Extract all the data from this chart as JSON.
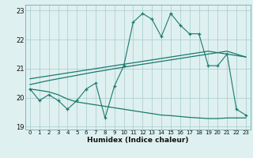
{
  "xlabel": "Humidex (Indice chaleur)",
  "bg_color": "#dff0f0",
  "grid_color": "#b0d0d0",
  "line_color": "#1a7a6e",
  "xlim": [
    -0.5,
    23.5
  ],
  "ylim": [
    18.9,
    23.2
  ],
  "yticks": [
    19,
    20,
    21,
    22,
    23
  ],
  "xticks": [
    0,
    1,
    2,
    3,
    4,
    5,
    6,
    7,
    8,
    9,
    10,
    11,
    12,
    13,
    14,
    15,
    16,
    17,
    18,
    19,
    20,
    21,
    22,
    23
  ],
  "series1_x": [
    0,
    1,
    2,
    3,
    4,
    5,
    6,
    7,
    8,
    9,
    10,
    11,
    12,
    13,
    14,
    15,
    16,
    17,
    18,
    19,
    20,
    21,
    22,
    23
  ],
  "series1_y": [
    20.3,
    19.9,
    20.1,
    19.9,
    19.6,
    19.9,
    20.3,
    20.5,
    19.3,
    20.4,
    21.1,
    22.6,
    22.9,
    22.7,
    22.1,
    22.9,
    22.5,
    22.2,
    22.2,
    21.1,
    21.1,
    21.5,
    19.6,
    19.4
  ],
  "series2_x": [
    0,
    1,
    2,
    3,
    4,
    5,
    6,
    7,
    8,
    9,
    10,
    11,
    12,
    13,
    14,
    15,
    16,
    17,
    18,
    19,
    20,
    21,
    22,
    23
  ],
  "series2_y": [
    20.45,
    20.52,
    20.59,
    20.65,
    20.71,
    20.77,
    20.83,
    20.89,
    20.94,
    21.0,
    21.05,
    21.1,
    21.15,
    21.2,
    21.25,
    21.3,
    21.35,
    21.4,
    21.45,
    21.5,
    21.55,
    21.6,
    21.5,
    21.4
  ],
  "series3_x": [
    0,
    1,
    2,
    3,
    4,
    5,
    6,
    7,
    8,
    9,
    10,
    11,
    12,
    13,
    14,
    15,
    16,
    17,
    18,
    19,
    20,
    21,
    22,
    23
  ],
  "series3_y": [
    20.65,
    20.7,
    20.75,
    20.8,
    20.85,
    20.9,
    20.95,
    21.0,
    21.05,
    21.1,
    21.15,
    21.2,
    21.25,
    21.3,
    21.35,
    21.4,
    21.45,
    21.5,
    21.55,
    21.6,
    21.55,
    21.5,
    21.45,
    21.4
  ],
  "series4_x": [
    0,
    1,
    2,
    3,
    4,
    5,
    6,
    7,
    8,
    9,
    10,
    11,
    12,
    13,
    14,
    15,
    16,
    17,
    18,
    19,
    20,
    21,
    22,
    23
  ],
  "series4_y": [
    20.3,
    20.25,
    20.2,
    20.1,
    19.95,
    19.85,
    19.8,
    19.75,
    19.7,
    19.65,
    19.6,
    19.55,
    19.5,
    19.45,
    19.4,
    19.38,
    19.35,
    19.32,
    19.3,
    19.28,
    19.28,
    19.3,
    19.3,
    19.3
  ]
}
